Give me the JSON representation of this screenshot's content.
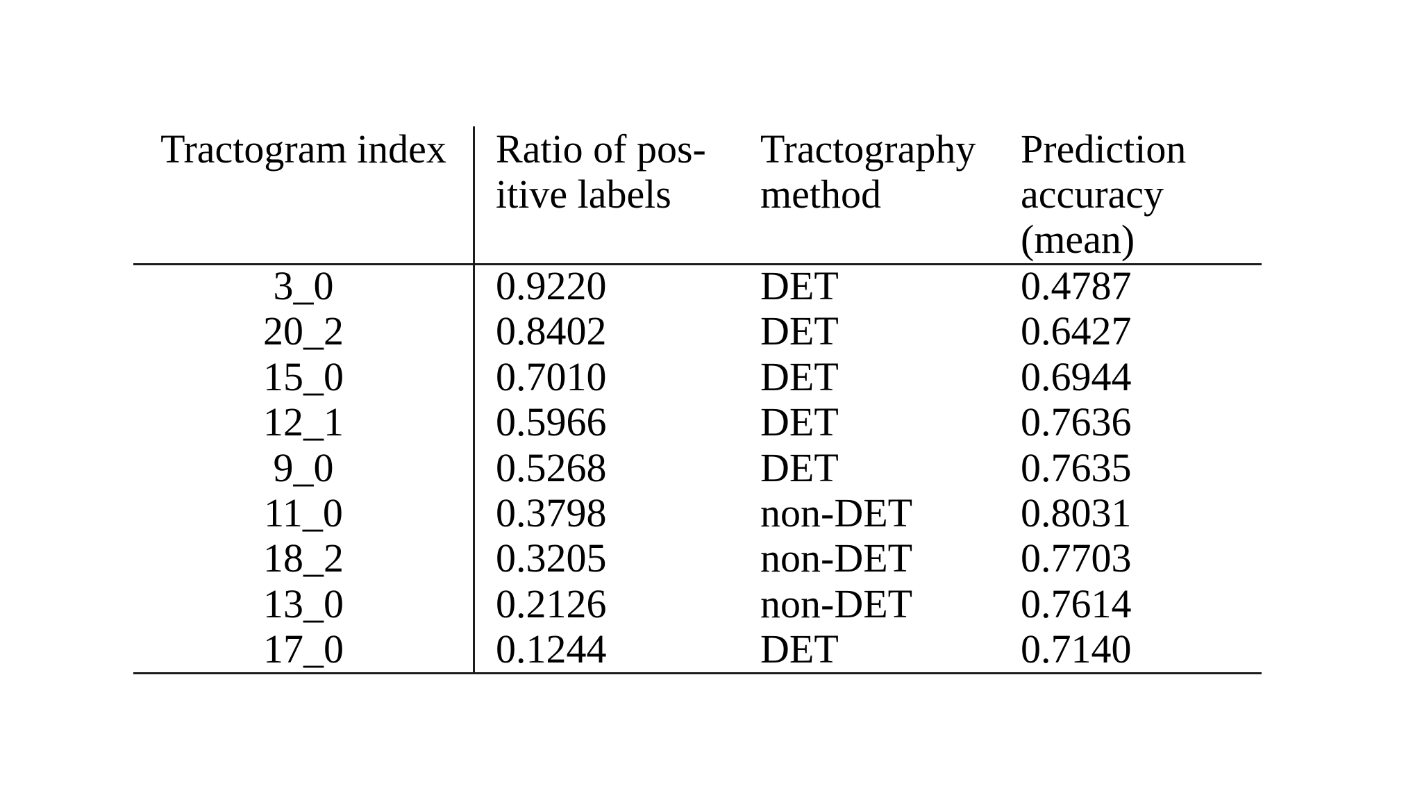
{
  "page": {
    "background_color": "#ffffff",
    "text_color": "#000000",
    "rule_color": "#1c1c1c"
  },
  "table": {
    "columns": [
      {
        "id": "tractogram_index",
        "header": "Tractogram index",
        "align": "center"
      },
      {
        "id": "ratio_pos_labels",
        "header": "Ratio of pos-\nitive labels",
        "align": "left"
      },
      {
        "id": "tractography_method",
        "header": "Tractography\nmethod",
        "align": "left"
      },
      {
        "id": "prediction_accuracy",
        "header": "Prediction\naccuracy\n(mean)",
        "align": "left"
      }
    ],
    "rows": [
      {
        "index": "3_0",
        "ratio": "0.9220",
        "method": "DET",
        "accuracy": "0.4787"
      },
      {
        "index": "20_2",
        "ratio": "0.8402",
        "method": "DET",
        "accuracy": "0.6427"
      },
      {
        "index": "15_0",
        "ratio": "0.7010",
        "method": "DET",
        "accuracy": "0.6944"
      },
      {
        "index": "12_1",
        "ratio": "0.5966",
        "method": "DET",
        "accuracy": "0.7636"
      },
      {
        "index": "9_0",
        "ratio": "0.5268",
        "method": "DET",
        "accuracy": "0.7635"
      },
      {
        "index": "11_0",
        "ratio": "0.3798",
        "method": "non-DET",
        "accuracy": "0.8031"
      },
      {
        "index": "18_2",
        "ratio": "0.3205",
        "method": "non-DET",
        "accuracy": "0.7703"
      },
      {
        "index": "13_0",
        "ratio": "0.2126",
        "method": "non-DET",
        "accuracy": "0.7614"
      },
      {
        "index": "17_0",
        "ratio": "0.1244",
        "method": "DET",
        "accuracy": "0.7140"
      }
    ]
  },
  "chart_data": {
    "type": "table",
    "title": "",
    "columns": [
      "Tractogram index",
      "Ratio of positive labels",
      "Tractography method",
      "Prediction accuracy (mean)"
    ],
    "rows": [
      [
        "3_0",
        0.922,
        "DET",
        0.4787
      ],
      [
        "20_2",
        0.8402,
        "DET",
        0.6427
      ],
      [
        "15_0",
        0.701,
        "DET",
        0.6944
      ],
      [
        "12_1",
        0.5966,
        "DET",
        0.7636
      ],
      [
        "9_0",
        0.5268,
        "DET",
        0.7635
      ],
      [
        "11_0",
        0.3798,
        "non-DET",
        0.8031
      ],
      [
        "18_2",
        0.3205,
        "non-DET",
        0.7703
      ],
      [
        "13_0",
        0.2126,
        "non-DET",
        0.7614
      ],
      [
        "17_0",
        0.1244,
        "DET",
        0.714
      ]
    ]
  }
}
